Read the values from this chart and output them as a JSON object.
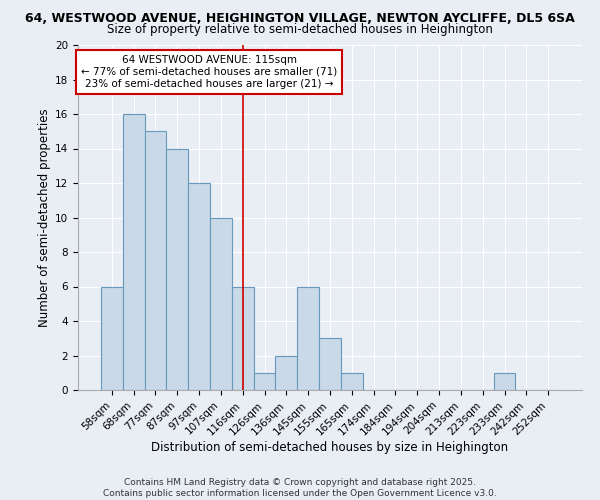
{
  "title_line1": "64, WESTWOOD AVENUE, HEIGHINGTON VILLAGE, NEWTON AYCLIFFE, DL5 6SA",
  "title_line2": "Size of property relative to semi-detached houses in Heighington",
  "xlabel": "Distribution of semi-detached houses by size in Heighington",
  "ylabel": "Number of semi-detached properties",
  "bin_labels": [
    "58sqm",
    "68sqm",
    "77sqm",
    "87sqm",
    "97sqm",
    "107sqm",
    "116sqm",
    "126sqm",
    "136sqm",
    "145sqm",
    "155sqm",
    "165sqm",
    "174sqm",
    "184sqm",
    "194sqm",
    "204sqm",
    "213sqm",
    "223sqm",
    "233sqm",
    "242sqm",
    "252sqm"
  ],
  "bar_heights": [
    6,
    16,
    15,
    14,
    12,
    10,
    6,
    1,
    2,
    6,
    3,
    1,
    0,
    0,
    0,
    0,
    0,
    0,
    1,
    0,
    0
  ],
  "bar_color": "#c9d9e8",
  "bar_edgecolor": "#6699bb",
  "vline_x": 6,
  "vline_color": "#cc0000",
  "annotation_text": "64 WESTWOOD AVENUE: 115sqm\n← 77% of semi-detached houses are smaller (71)\n23% of semi-detached houses are larger (21) →",
  "annotation_box_facecolor": "#ffffff",
  "annotation_box_edgecolor": "#cc0000",
  "ylim": [
    0,
    20
  ],
  "yticks": [
    0,
    2,
    4,
    6,
    8,
    10,
    12,
    14,
    16,
    18,
    20
  ],
  "background_color": "#e8eef4",
  "footer_text": "Contains HM Land Registry data © Crown copyright and database right 2025.\nContains public sector information licensed under the Open Government Licence v3.0.",
  "title_fontsize": 9,
  "subtitle_fontsize": 8.5,
  "axis_label_fontsize": 8.5,
  "tick_fontsize": 7.5,
  "annotation_fontsize": 7.5,
  "footer_fontsize": 6.5
}
